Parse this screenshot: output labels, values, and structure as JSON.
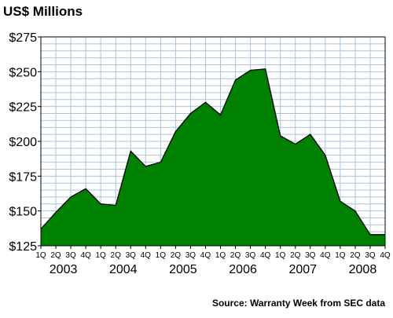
{
  "chart_data": {
    "type": "area",
    "title": "US$ Millions",
    "source": "Source: Warranty Week from SEC data",
    "xlabel": "",
    "ylabel": "",
    "y_unit_prefix": "$",
    "ylim": [
      125,
      275
    ],
    "yticks": [
      125,
      150,
      175,
      200,
      225,
      250,
      275
    ],
    "ytick_labels": [
      "$125",
      "$150",
      "$175",
      "$200",
      "$225",
      "$250",
      "$275"
    ],
    "quarters": [
      "1Q",
      "2Q",
      "3Q",
      "4Q",
      "1Q",
      "2Q",
      "3Q",
      "4Q",
      "1Q",
      "2Q",
      "3Q",
      "4Q",
      "1Q",
      "2Q",
      "3Q",
      "4Q",
      "1Q",
      "2Q",
      "3Q",
      "4Q",
      "1Q",
      "2Q",
      "3Q",
      "4Q"
    ],
    "years": [
      "2003",
      "2004",
      "2005",
      "2006",
      "2007",
      "2008"
    ],
    "values": [
      137,
      149,
      160,
      166,
      155,
      154,
      193,
      182,
      185,
      207,
      220,
      228,
      219,
      244,
      251,
      252,
      204,
      198,
      205,
      190,
      157,
      150,
      133,
      133
    ],
    "grid": true,
    "colors": {
      "fill": "#008000",
      "line": "#000000",
      "grid": "#a6c4e0",
      "plot_background": "#ffffff",
      "axis": "#000000"
    }
  }
}
